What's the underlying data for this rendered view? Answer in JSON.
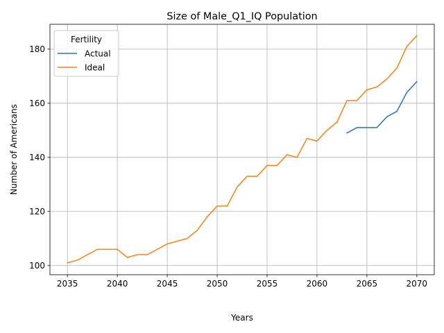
{
  "chart_data": {
    "type": "line",
    "title": "Size of Male_Q1_IQ Population",
    "xlabel": "Years",
    "ylabel": "Number of Americans",
    "xlim": [
      2033.25,
      2071.75
    ],
    "ylim": [
      96.6,
      189.2
    ],
    "x_ticks": [
      2035,
      2040,
      2045,
      2050,
      2055,
      2060,
      2065,
      2070
    ],
    "y_ticks": [
      100,
      120,
      140,
      160,
      180
    ],
    "grid": true,
    "legend": {
      "title": "Fertility",
      "placement": "top-left"
    },
    "series": [
      {
        "name": "Actual",
        "color": "#1f77b4",
        "x": [
          2063,
          2064,
          2065,
          2066,
          2067,
          2068,
          2069,
          2070
        ],
        "y": [
          149,
          151,
          151,
          151,
          155,
          157,
          164,
          168
        ]
      },
      {
        "name": "Ideal",
        "color": "#ff7f0e",
        "x": [
          2035,
          2036,
          2037,
          2038,
          2039,
          2040,
          2041,
          2042,
          2043,
          2044,
          2045,
          2046,
          2047,
          2048,
          2049,
          2050,
          2051,
          2052,
          2053,
          2054,
          2055,
          2056,
          2057,
          2058,
          2059,
          2060,
          2061,
          2062,
          2063,
          2064,
          2065,
          2066,
          2067,
          2068,
          2069,
          2070
        ],
        "y": [
          101,
          102,
          104,
          106,
          106,
          106,
          103,
          104,
          104,
          106,
          108,
          109,
          110,
          113,
          118,
          122,
          122,
          129,
          133,
          133,
          137,
          137,
          141,
          140,
          147,
          146,
          150,
          153,
          161,
          161,
          165,
          166,
          169,
          173,
          181,
          185
        ]
      }
    ]
  }
}
